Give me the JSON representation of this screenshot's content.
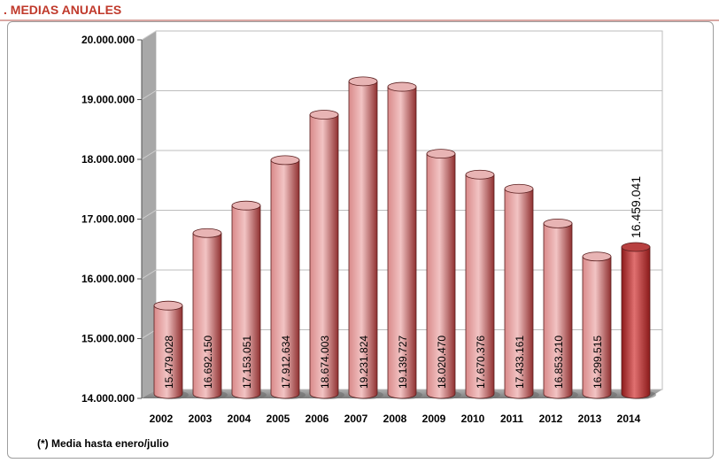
{
  "header": {
    "title": ". MEDIAS ANUALES"
  },
  "footnote": "(*) Media hasta enero/julio",
  "colors": {
    "bar_light": "#f2c4c4",
    "bar_mid": "#d98a8a",
    "bar_dark": "#8f3030",
    "highlight_light": "#e07070",
    "highlight_dark": "#8b1a1a",
    "floor": "#9a9a9a",
    "wall": "#ffffff"
  },
  "chart_data": {
    "type": "bar",
    "categories": [
      "2002",
      "2003",
      "2004",
      "2005",
      "2006",
      "2007",
      "2008",
      "2009",
      "2010",
      "2011",
      "2012",
      "2013",
      "2014"
    ],
    "values": [
      15479028,
      16692150,
      17153051,
      17912634,
      18674003,
      19231824,
      19139727,
      18020470,
      17670376,
      17433161,
      16853210,
      16299515,
      16459041
    ],
    "value_labels": [
      "15.479.028",
      "16.692.150",
      "17.153.051",
      "17.912.634",
      "18.674.003",
      "19.231.824",
      "19.139.727",
      "18.020.470",
      "17.670.376",
      "17.433.161",
      "16.853.210",
      "16.299.515",
      "16.459.041"
    ],
    "highlight_index": 12,
    "ylim": [
      14000000,
      20000000
    ],
    "yticks": [
      14000000,
      15000000,
      16000000,
      17000000,
      18000000,
      19000000,
      20000000
    ],
    "ytick_labels": [
      "14.000.000",
      "15.000.000",
      "16.000.000",
      "17.000.000",
      "18.000.000",
      "19.000.000",
      "20.000.000"
    ],
    "grid": true,
    "xlabel": "",
    "ylabel": "",
    "title": ""
  }
}
